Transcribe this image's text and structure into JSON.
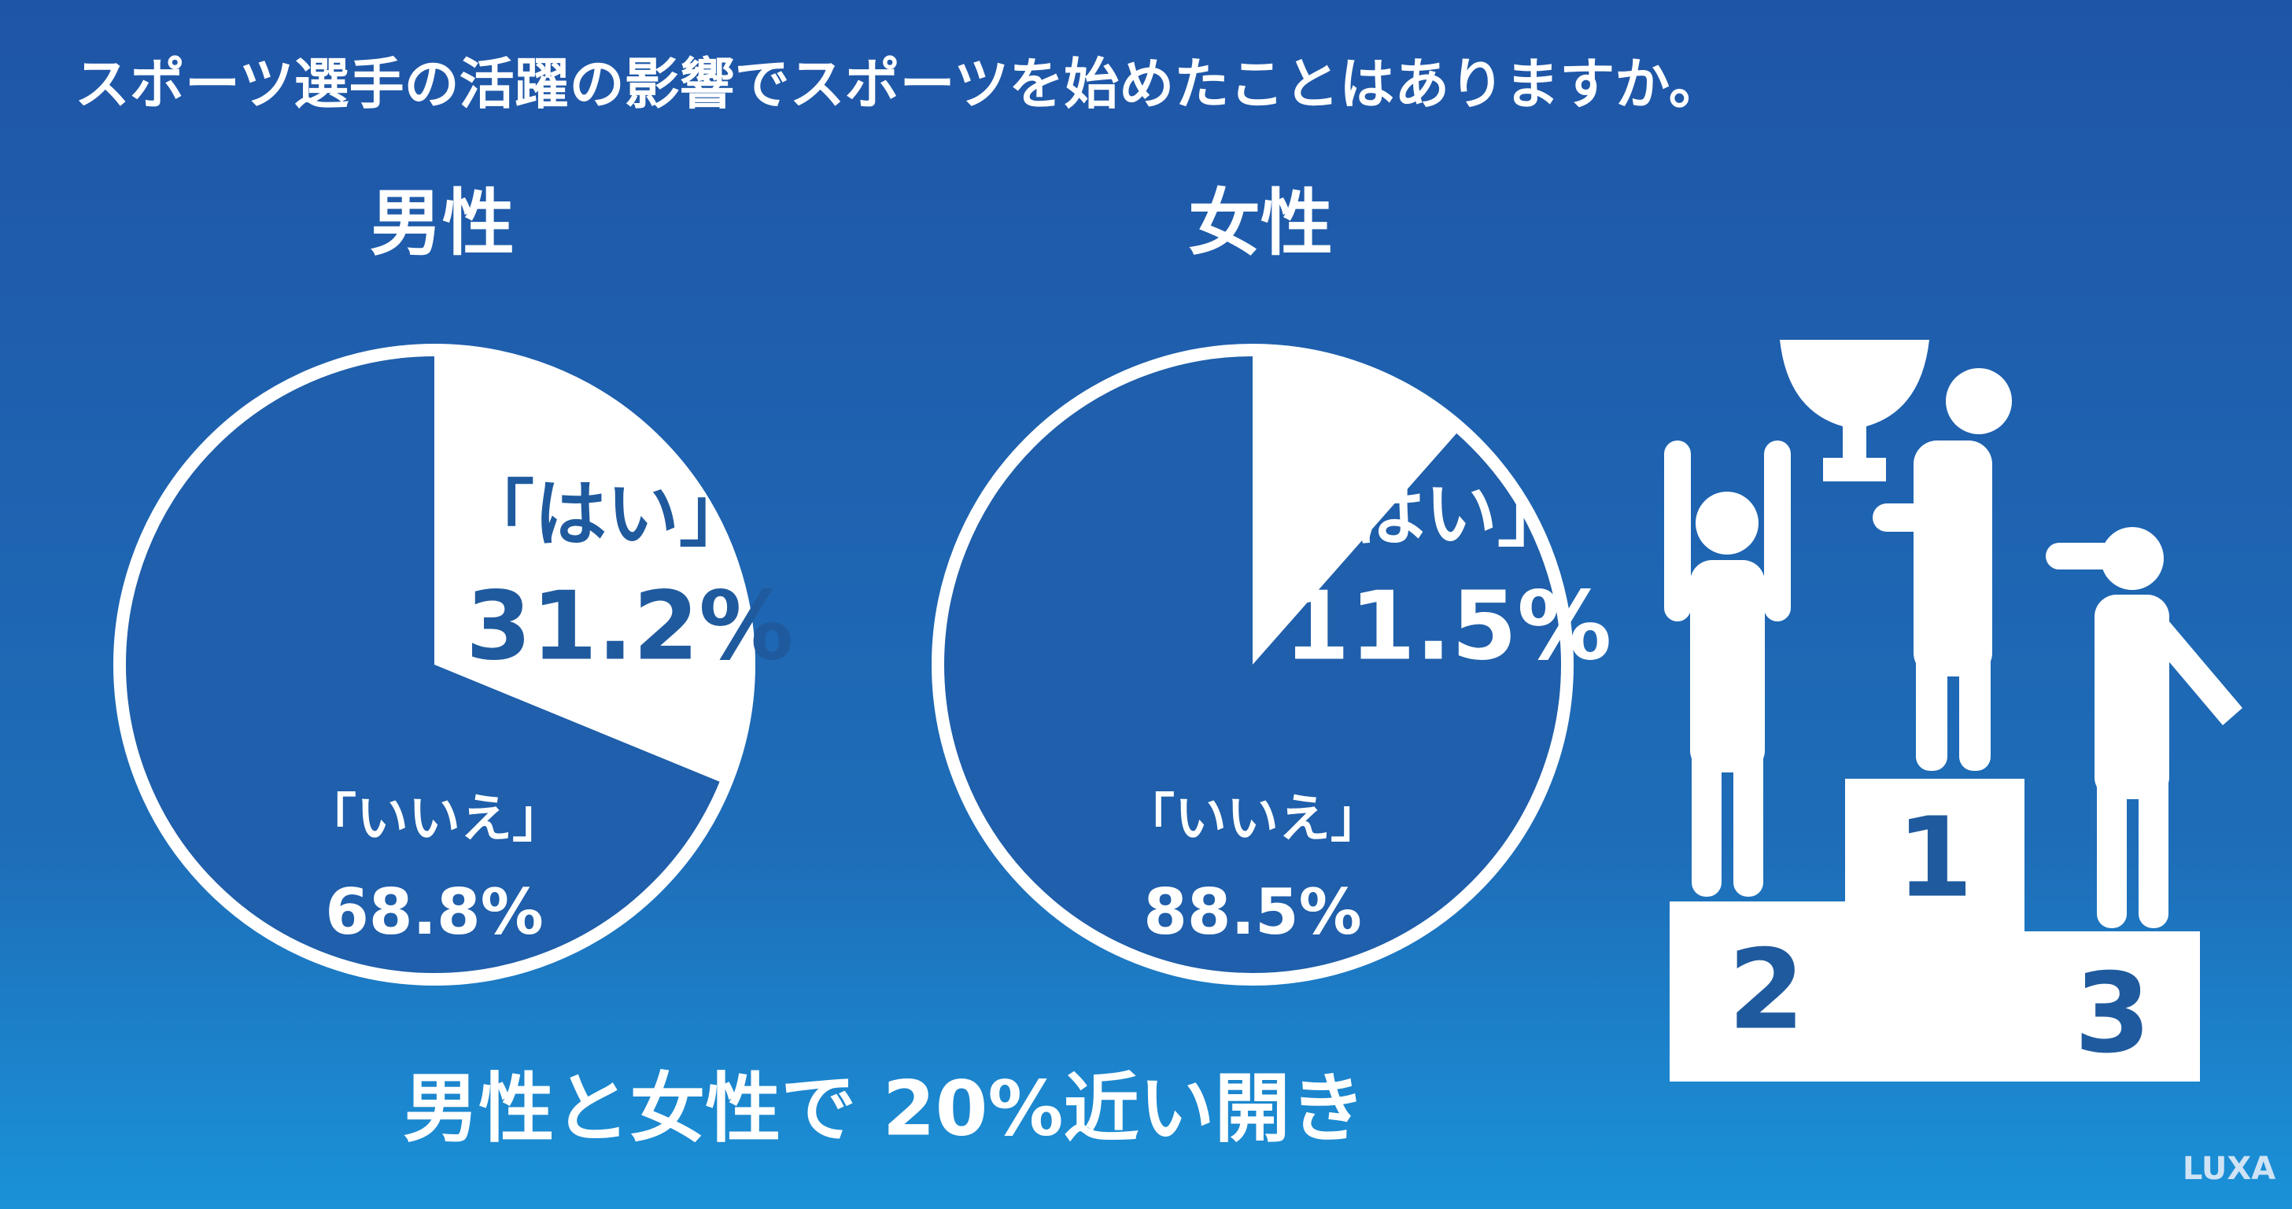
{
  "title": "スポーツ選手の活躍の影響でスポーツを始めたことはありますか。",
  "chart_data": [
    {
      "type": "pie",
      "title": "男性",
      "categories": [
        "「はい」",
        "「いいえ」"
      ],
      "values": [
        31.2,
        68.8
      ],
      "value_labels": [
        "31.2%",
        "68.8%"
      ],
      "colors": [
        "#ffffff",
        "#1f5fab"
      ]
    },
    {
      "type": "pie",
      "title": "女性",
      "categories": [
        "「はい」",
        "「いいえ」"
      ],
      "values": [
        11.5,
        88.5
      ],
      "value_labels": [
        "11.5%",
        "88.5%"
      ],
      "colors": [
        "#ffffff",
        "#1f5fab"
      ]
    }
  ],
  "summary": "男性と女性で 20%近い開き",
  "podium": [
    "1",
    "2",
    "3"
  ],
  "logo": "LUXA"
}
